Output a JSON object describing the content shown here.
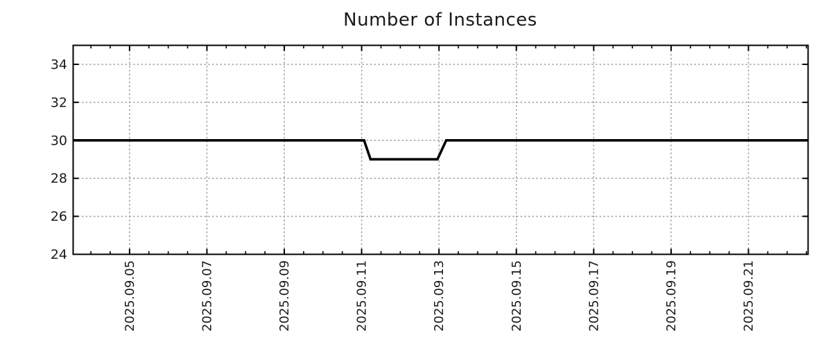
{
  "figure": {
    "title": "Number of Instances",
    "background": "#ffffff"
  },
  "chart_data": {
    "type": "line",
    "title": "Number of Instances",
    "xlabel": "",
    "ylabel": "",
    "legend": "none",
    "grid": "dotted gray lines at every major tick",
    "x_type": "time",
    "x_range": [
      "2025-09-03T13:00",
      "2025-09-22T13:00"
    ],
    "y_range": [
      24,
      35
    ],
    "y_ticks": [
      24,
      26,
      28,
      30,
      32,
      34
    ],
    "x_minor_tick_hours": 12,
    "x_ticks": [
      {
        "date": "2025-09-05",
        "label": "2025.09.05"
      },
      {
        "date": "2025-09-07",
        "label": "2025.09.07"
      },
      {
        "date": "2025-09-09",
        "label": "2025.09.09"
      },
      {
        "date": "2025-09-11",
        "label": "2025.09.11"
      },
      {
        "date": "2025-09-13",
        "label": "2025.09.13"
      },
      {
        "date": "2025-09-15",
        "label": "2025.09.15"
      },
      {
        "date": "2025-09-17",
        "label": "2025.09.17"
      },
      {
        "date": "2025-09-19",
        "label": "2025.09.19"
      },
      {
        "date": "2025-09-21",
        "label": "2025.09.21"
      }
    ],
    "series": [
      {
        "name": "instances",
        "color": "#000000",
        "points": [
          [
            "2025-09-03T13:00",
            30
          ],
          [
            "2025-09-11T01:30",
            30
          ],
          [
            "2025-09-11T05:30",
            29
          ],
          [
            "2025-09-12T23:00",
            29
          ],
          [
            "2025-09-13T04:30",
            30
          ],
          [
            "2025-09-22T13:00",
            30
          ]
        ]
      }
    ],
    "colors": {
      "axis": "#000000",
      "grid": "#9e9e9e",
      "text": "#1a1a1a",
      "line": "#000000"
    }
  }
}
